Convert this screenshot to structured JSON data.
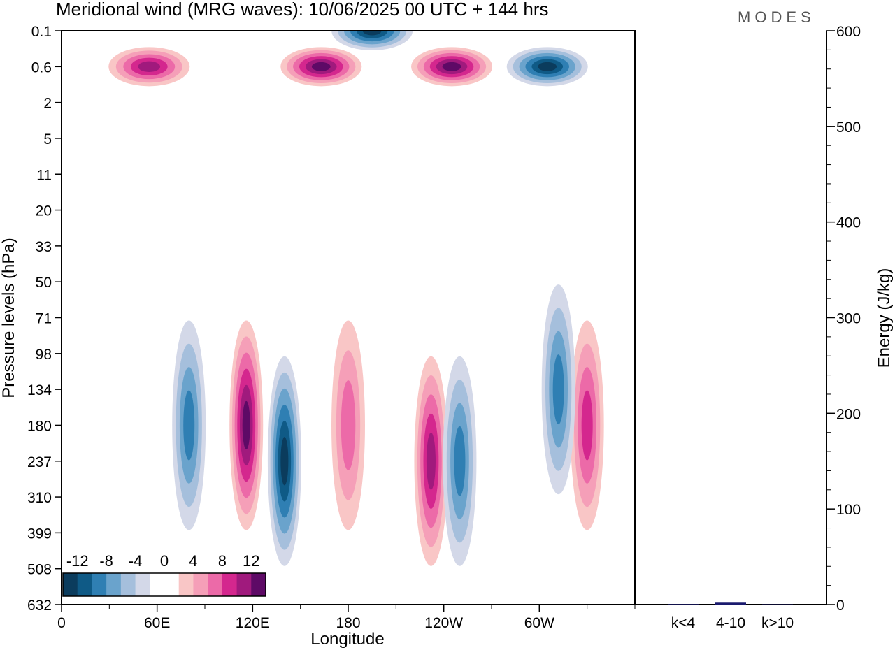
{
  "title": "Meridional wind (MRG waves):  10/06/2025  00 UTC  + 144 hrs",
  "logo": "MODES",
  "chart_data": [
    {
      "type": "heatmap",
      "title": "Meridional wind (MRG waves):  10/06/2025  00 UTC  + 144 hrs",
      "xlabel": "Longitude",
      "ylabel": "Pressure levels (hPa)",
      "x_ticks": [
        "0",
        "60E",
        "120E",
        "180",
        "120W",
        "60W"
      ],
      "y_ticks": [
        "0.1",
        "0.6",
        "2",
        "5",
        "11",
        "20",
        "33",
        "50",
        "71",
        "98",
        "134",
        "180",
        "237",
        "310",
        "399",
        "508",
        "632"
      ],
      "colorbar": {
        "labels": [
          "-12",
          "-8",
          "-4",
          "0",
          "4",
          "8",
          "12"
        ],
        "colors": [
          "#0b3c5d",
          "#0f5a86",
          "#2f7fb3",
          "#6aa3cc",
          "#a5bfdc",
          "#d3d8e8",
          "#ffffff",
          "#ffffff",
          "#f9c6c6",
          "#f59fb8",
          "#ec6aa8",
          "#d4278e",
          "#a01a7d",
          "#5e0a66"
        ]
      },
      "features": [
        {
          "label": "negative",
          "lon": 140,
          "level": "237",
          "value": -12
        },
        {
          "label": "positive",
          "lon": 116,
          "level": "180",
          "value": 12
        },
        {
          "label": "negative",
          "lon": 80,
          "level": "180",
          "value": -8
        },
        {
          "label": "positive",
          "lon": 180,
          "level": "180",
          "value": 6
        },
        {
          "label": "positive",
          "lon": 232,
          "level": "237",
          "value": 10
        },
        {
          "label": "negative",
          "lon": 250,
          "level": "237",
          "value": -8
        },
        {
          "label": "positive",
          "lon": 330,
          "level": "180",
          "value": 8
        },
        {
          "label": "negative",
          "lon": 312,
          "level": "134",
          "value": -8
        },
        {
          "label": "positive",
          "lon": 163,
          "level": "0.6",
          "value": 14
        },
        {
          "label": "positive",
          "lon": 245,
          "level": "0.6",
          "value": 14
        },
        {
          "label": "negative",
          "lon": 195,
          "level": "0.1",
          "value": -14
        },
        {
          "label": "negative",
          "lon": 305,
          "level": "0.6",
          "value": -14
        },
        {
          "label": "positive",
          "lon": 55,
          "level": "0.6",
          "value": 10
        }
      ]
    },
    {
      "type": "bar",
      "ylabel": "Energy (J/kg)",
      "categories": [
        "k<4",
        "4-10",
        "k>10"
      ],
      "values": [
        0.5,
        2,
        0.3
      ],
      "colors": [
        "#1a1a6e",
        "#1a1a6e",
        "#1a1a6e"
      ],
      "ylim": [
        0,
        600
      ],
      "y_ticks": [
        "0",
        "100",
        "200",
        "300",
        "400",
        "500",
        "600"
      ]
    }
  ]
}
